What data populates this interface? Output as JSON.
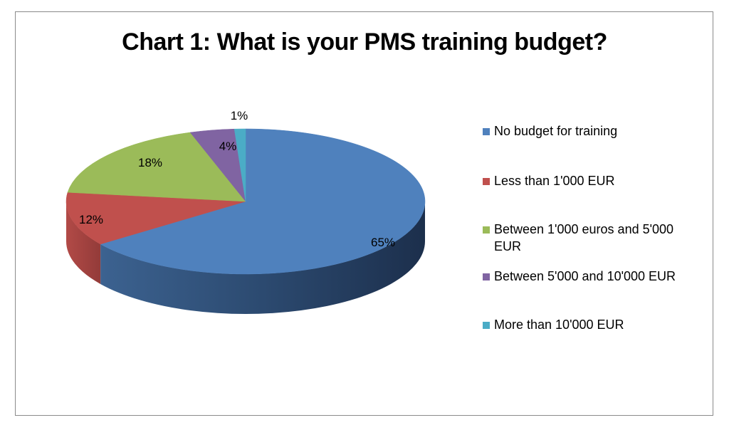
{
  "chart_data": {
    "type": "pie",
    "title": "Chart 1: What is your PMS training budget?",
    "style": "3d-pie",
    "categories": [
      "No budget for training",
      "Less than 1'000 EUR",
      "Between 1'000 euros and 5'000 EUR",
      "Between 5'000 and 10'000 EUR",
      "More than 10'000 EUR"
    ],
    "values": [
      65,
      12,
      18,
      4,
      1
    ],
    "data_labels": [
      "65%",
      "12%",
      "18%",
      "4%",
      "1%"
    ],
    "colors": [
      "#4f81bd",
      "#c0504d",
      "#9bbb59",
      "#8064a2",
      "#4bacc6"
    ],
    "legend_position": "right"
  },
  "legend": {
    "items": [
      {
        "label": "No budget for training",
        "color": "#4f81bd"
      },
      {
        "label": "Less than 1'000 EUR",
        "color": "#c0504d"
      },
      {
        "label": "Between 1'000 euros and 5'000 EUR",
        "color": "#9bbb59"
      },
      {
        "label": "Between 5'000 and 10'000 EUR",
        "color": "#8064a2"
      },
      {
        "label": "More than 10'000 EUR",
        "color": "#4bacc6"
      }
    ]
  }
}
